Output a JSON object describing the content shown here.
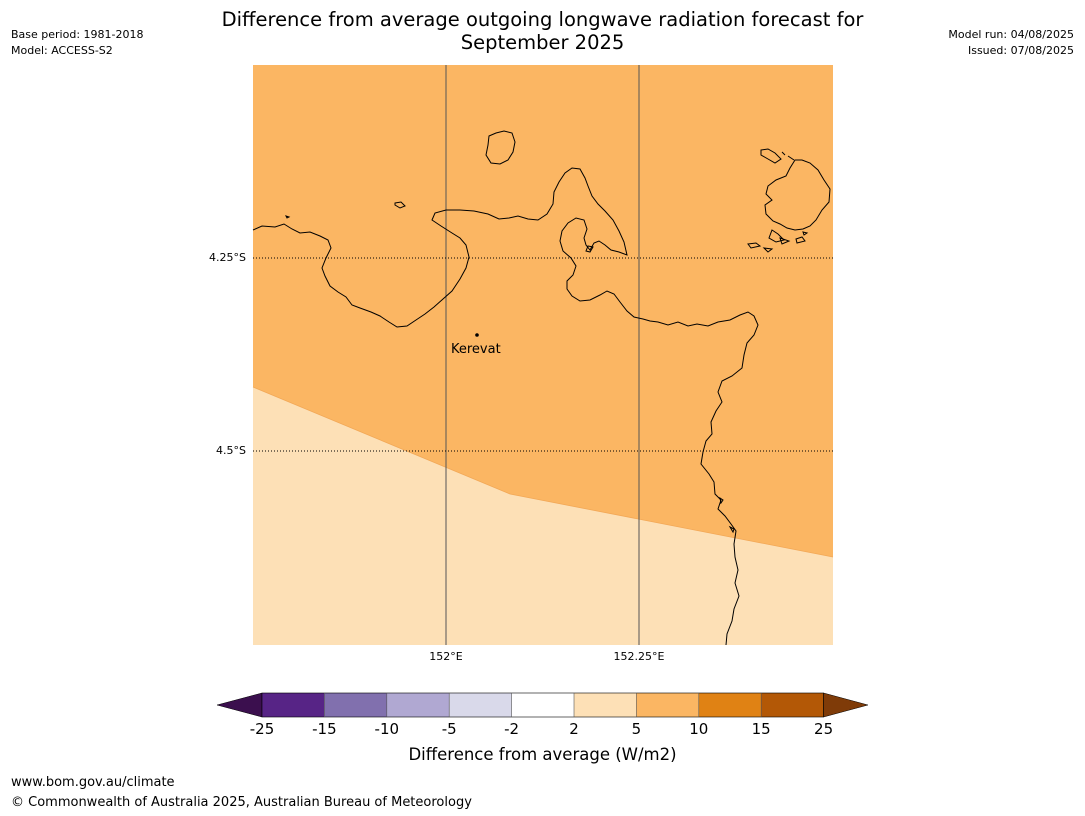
{
  "header": {
    "base_period": "Base period: 1981-2018",
    "model": "Model: ACCESS-S2",
    "title_line1": "Difference from average outgoing longwave radiation forecast for",
    "title_line2": "September 2025",
    "model_run": "Model run: 04/08/2025",
    "issued": "Issued: 07/08/2025"
  },
  "map": {
    "lat_labels": [
      "4.25°S",
      "4.5°S"
    ],
    "lon_labels": [
      "152°E",
      "152.25°E"
    ],
    "place": "Kerevat",
    "colors": {
      "class_5_10": "#fbb663",
      "class_2_5": "#fde0b6",
      "coastline": "#000000",
      "gridline": "#555555"
    }
  },
  "colorbar": {
    "ticks": [
      "-25",
      "-15",
      "-10",
      "-5",
      "-2",
      "2",
      "5",
      "10",
      "15",
      "25"
    ],
    "colors": [
      "#3b0f4e",
      "#572486",
      "#8170ae",
      "#b0a8d2",
      "#d9d9ea",
      "#ffffff",
      "#fde0b6",
      "#fbb663",
      "#e08214",
      "#b35806",
      "#7f3b08"
    ],
    "label": "Difference from average (W/m2)"
  },
  "footer": {
    "url": "www.bom.gov.au/climate",
    "copyright": "© Commonwealth of Australia 2025, Australian Bureau of Meteorology"
  }
}
